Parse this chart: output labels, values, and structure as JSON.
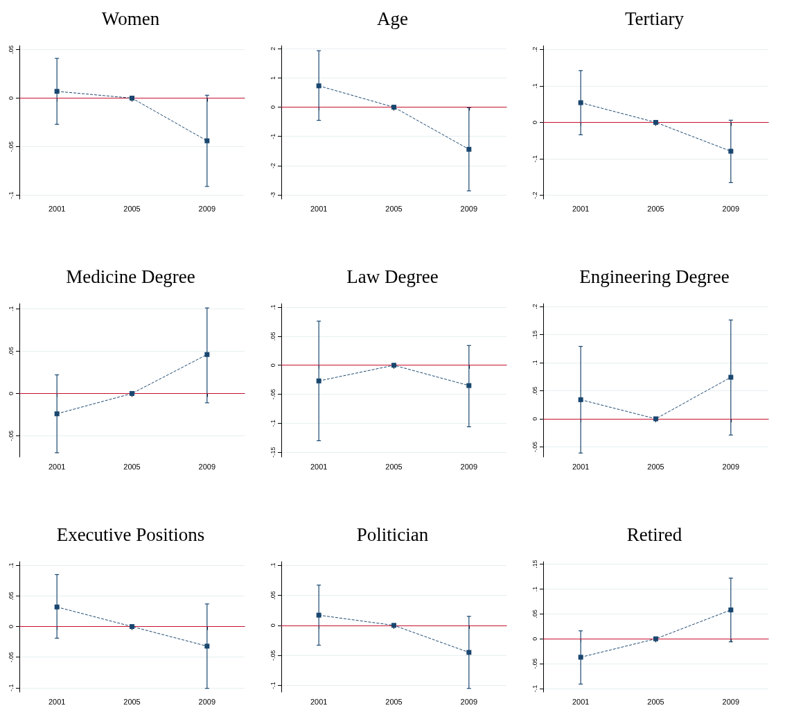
{
  "chart_data": [
    {
      "type": "line",
      "title": "Women",
      "categories": [
        "2001",
        "2005",
        "2009"
      ],
      "series": [
        {
          "color": "#1a476f",
          "values": [
            0.007,
            0,
            -0.044
          ],
          "errors": [
            [
              -0.027,
              0.041
            ],
            null,
            [
              -0.091,
              0.003
            ]
          ]
        }
      ],
      "ylim": [
        -0.104,
        0.054
      ],
      "yticks": [
        {
          "value": -0.1,
          "label": "-.1"
        },
        {
          "value": -0.05,
          "label": "-.05"
        },
        0,
        {
          "value": 0.05,
          "label": ".05"
        }
      ],
      "grid": "y",
      "marker": "square",
      "line_style": "dashed",
      "ref_lines": [
        {
          "axis": "y",
          "value": 0,
          "color": "#c8102e"
        }
      ]
    },
    {
      "type": "line",
      "title": "Age",
      "categories": [
        "2001",
        "2005",
        "2009"
      ],
      "series": [
        {
          "color": "#1a476f",
          "values": [
            0.73,
            0,
            -1.44
          ],
          "errors": [
            [
              -0.45,
              1.93
            ],
            null,
            [
              -2.86,
              -0.02
            ]
          ]
        }
      ],
      "ylim": [
        -3.14,
        2.1
      ],
      "yticks": [
        -3,
        -2,
        -1,
        0,
        1,
        2
      ],
      "grid": "y",
      "marker": "square",
      "line_style": "dashed",
      "ref_lines": [
        {
          "axis": "y",
          "value": 0,
          "color": "#c8102e"
        }
      ]
    },
    {
      "type": "line",
      "title": "Tertiary",
      "categories": [
        "2001",
        "2005",
        "2009"
      ],
      "series": [
        {
          "color": "#1a476f",
          "values": [
            0.054,
            0,
            -0.079
          ],
          "errors": [
            [
              -0.034,
              0.142
            ],
            null,
            [
              -0.165,
              0.006
            ]
          ]
        }
      ],
      "ylim": [
        -0.21,
        0.21
      ],
      "yticks": [
        {
          "value": -0.2,
          "label": "-.2"
        },
        {
          "value": -0.1,
          "label": "-.1"
        },
        0,
        {
          "value": 0.1,
          "label": ".1"
        },
        {
          "value": 0.2,
          "label": ".2"
        }
      ],
      "grid": "y",
      "marker": "square",
      "line_style": "dashed",
      "ref_lines": [
        {
          "axis": "y",
          "value": 0,
          "color": "#c8102e"
        }
      ]
    },
    {
      "type": "line",
      "title": "Medicine Degree",
      "categories": [
        "2001",
        "2005",
        "2009"
      ],
      "series": [
        {
          "color": "#1a476f",
          "values": [
            -0.024,
            0,
            0.046
          ],
          "errors": [
            [
              -0.07,
              0.022
            ],
            null,
            [
              -0.011,
              0.101
            ]
          ]
        }
      ],
      "ylim": [
        -0.075,
        0.106
      ],
      "yticks": [
        {
          "value": -0.05,
          "label": "-.05"
        },
        0,
        {
          "value": 0.05,
          "label": ".05"
        },
        {
          "value": 0.1,
          "label": ".1"
        }
      ],
      "grid": "y",
      "marker": "square",
      "line_style": "dashed",
      "ref_lines": [
        {
          "axis": "y",
          "value": 0,
          "color": "#c8102e"
        }
      ]
    },
    {
      "type": "line",
      "title": "Law Degree",
      "categories": [
        "2001",
        "2005",
        "2009"
      ],
      "series": [
        {
          "color": "#1a476f",
          "values": [
            -0.027,
            0,
            -0.035
          ],
          "errors": [
            [
              -0.13,
              0.076
            ],
            null,
            [
              -0.106,
              0.034
            ]
          ]
        }
      ],
      "ylim": [
        -0.158,
        0.106
      ],
      "yticks": [
        {
          "value": -0.15,
          "label": "-.15"
        },
        {
          "value": -0.1,
          "label": "-.1"
        },
        {
          "value": -0.05,
          "label": "-.05"
        },
        0,
        {
          "value": 0.05,
          "label": ".05"
        },
        {
          "value": 0.1,
          "label": ".1"
        }
      ],
      "grid": "y",
      "marker": "square",
      "line_style": "dashed",
      "ref_lines": [
        {
          "axis": "y",
          "value": 0,
          "color": "#c8102e"
        }
      ]
    },
    {
      "type": "line",
      "title": "Engineering Degree",
      "categories": [
        "2001",
        "2005",
        "2009"
      ],
      "series": [
        {
          "color": "#1a476f",
          "values": [
            0.034,
            0,
            0.074
          ],
          "errors": [
            [
              -0.061,
              0.129
            ],
            null,
            [
              -0.029,
              0.176
            ]
          ]
        }
      ],
      "ylim": [
        -0.068,
        0.205
      ],
      "yticks": [
        {
          "value": -0.05,
          "label": "-.05"
        },
        0,
        {
          "value": 0.05,
          "label": ".05"
        },
        {
          "value": 0.1,
          "label": ".1"
        },
        {
          "value": 0.15,
          "label": ".15"
        },
        {
          "value": 0.2,
          "label": ".2"
        }
      ],
      "grid": "y",
      "marker": "square",
      "line_style": "dashed",
      "ref_lines": [
        {
          "axis": "y",
          "value": 0,
          "color": "#c8102e"
        }
      ]
    },
    {
      "type": "line",
      "title": "Executive Positions",
      "categories": [
        "2001",
        "2005",
        "2009"
      ],
      "series": [
        {
          "color": "#1a476f",
          "values": [
            0.032,
            0,
            -0.032
          ],
          "errors": [
            [
              -0.019,
              0.085
            ],
            null,
            [
              -0.101,
              0.037
            ]
          ]
        }
      ],
      "ylim": [
        -0.107,
        0.106
      ],
      "yticks": [
        {
          "value": -0.1,
          "label": "-.1"
        },
        {
          "value": -0.05,
          "label": "-.05"
        },
        0,
        {
          "value": 0.05,
          "label": ".05"
        },
        {
          "value": 0.1,
          "label": ".1"
        }
      ],
      "grid": "y",
      "marker": "square",
      "line_style": "dashed",
      "ref_lines": [
        {
          "axis": "y",
          "value": 0,
          "color": "#c8102e"
        }
      ]
    },
    {
      "type": "line",
      "title": "Politician",
      "categories": [
        "2001",
        "2005",
        "2009"
      ],
      "series": [
        {
          "color": "#1a476f",
          "values": [
            0.017,
            0,
            -0.045
          ],
          "errors": [
            [
              -0.033,
              0.067
            ],
            null,
            [
              -0.105,
              0.015
            ]
          ]
        }
      ],
      "ylim": [
        -0.111,
        0.106
      ],
      "yticks": [
        {
          "value": -0.1,
          "label": "-.1"
        },
        {
          "value": -0.05,
          "label": "-.05"
        },
        0,
        {
          "value": 0.05,
          "label": ".05"
        },
        {
          "value": 0.1,
          "label": ".1"
        }
      ],
      "grid": "y",
      "marker": "square",
      "line_style": "dashed",
      "ref_lines": [
        {
          "axis": "y",
          "value": 0,
          "color": "#c8102e"
        }
      ]
    },
    {
      "type": "line",
      "title": "Retired",
      "categories": [
        "2001",
        "2005",
        "2009"
      ],
      "series": [
        {
          "color": "#1a476f",
          "values": [
            -0.037,
            0,
            0.058
          ],
          "errors": [
            [
              -0.091,
              0.016
            ],
            null,
            [
              -0.006,
              0.122
            ]
          ]
        }
      ],
      "ylim": [
        -0.107,
        0.155
      ],
      "yticks": [
        {
          "value": -0.1,
          "label": "-.1"
        },
        {
          "value": -0.05,
          "label": "-.05"
        },
        0,
        {
          "value": 0.05,
          "label": ".05"
        },
        {
          "value": 0.1,
          "label": ".1"
        },
        {
          "value": 0.15,
          "label": ".15"
        }
      ],
      "grid": "y",
      "marker": "square",
      "line_style": "dashed",
      "ref_lines": [
        {
          "axis": "y",
          "value": 0,
          "color": "#c8102e"
        }
      ]
    }
  ]
}
